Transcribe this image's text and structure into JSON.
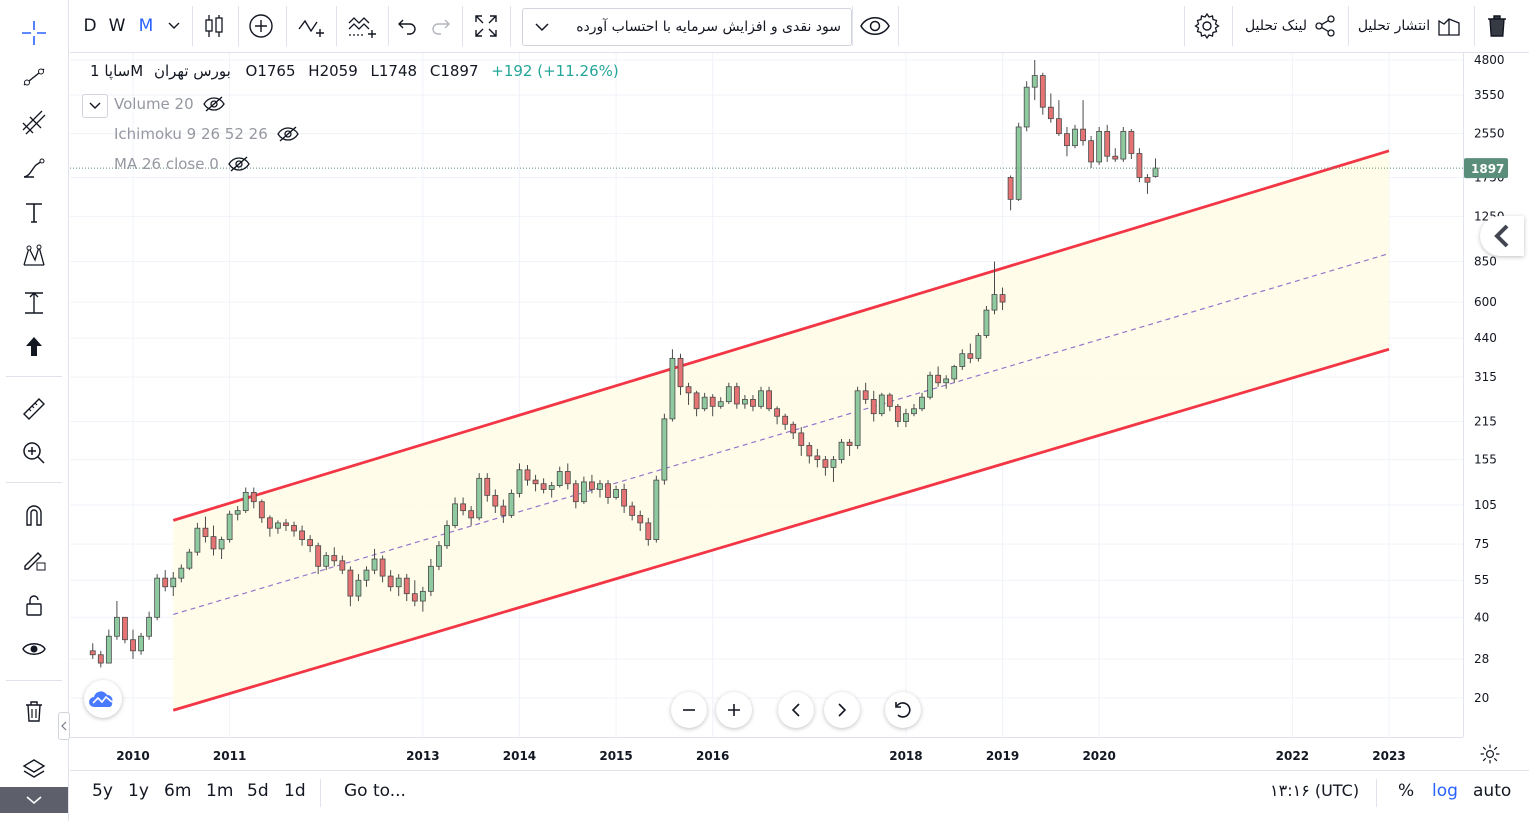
{
  "top_toolbar": {
    "intervals": [
      "D",
      "W",
      "M"
    ],
    "active_interval": "M",
    "chart_title": "سود نقدی و افزایش سرمایه با احتساب آورده",
    "publish_label": "انتشار تحلیل",
    "link_label": "لینک تحلیل"
  },
  "legend": {
    "symbol": "ساپا",
    "exchange": "بورس تهران",
    "interval": "1M",
    "open": "O1765",
    "high": "H2059",
    "low": "L1748",
    "close": "C1897",
    "change": "+192 (+11.26%)"
  },
  "indicators": [
    {
      "label": "Volume 20"
    },
    {
      "label": "Ichimoku 9 26 52 26"
    },
    {
      "label": "MA 26 close 0"
    }
  ],
  "bottom_bar": {
    "ranges": [
      "5y",
      "1y",
      "6m",
      "1m",
      "5d",
      "1d"
    ],
    "goto_label": "Go to...",
    "clock": "۱۳:۱۶ (UTC)",
    "percent_label": "%",
    "log_label": "log",
    "auto_label": "auto"
  },
  "colors": {
    "up": "#26a69a",
    "up_fill": "#8fc9a0",
    "down": "#ef5350",
    "down_fill": "#e57373",
    "channel": "#f23645",
    "channel_fill": "#fffde7",
    "median": "#9575cd",
    "accent": "#2962ff",
    "price_tag": "#5a8e7a"
  },
  "chart_data": {
    "type": "candlestick",
    "scale": "log",
    "y_ticks": [
      20,
      28,
      40,
      55,
      75,
      105,
      155,
      215,
      315,
      440,
      600,
      850,
      1250,
      1750,
      2550,
      3550,
      4800
    ],
    "x_ticks": [
      "2010",
      "2011",
      "2013",
      "2014",
      "2015",
      "2016",
      "2018",
      "2019",
      "2020",
      "2022",
      "2023"
    ],
    "last_price": "1897",
    "candles_start": "2009-08",
    "candles": [
      [
        30,
        32,
        28,
        29
      ],
      [
        29,
        30,
        26,
        27
      ],
      [
        27,
        36,
        27,
        34
      ],
      [
        34,
        46,
        33,
        40
      ],
      [
        40,
        40,
        32,
        33
      ],
      [
        33,
        36,
        28,
        30
      ],
      [
        30,
        35,
        29,
        34
      ],
      [
        34,
        42,
        33,
        40
      ],
      [
        40,
        58,
        39,
        56
      ],
      [
        56,
        60,
        50,
        52
      ],
      [
        52,
        59,
        48,
        56
      ],
      [
        56,
        63,
        54,
        61
      ],
      [
        61,
        72,
        60,
        70
      ],
      [
        70,
        90,
        68,
        86
      ],
      [
        86,
        95,
        76,
        80
      ],
      [
        80,
        88,
        68,
        72
      ],
      [
        72,
        80,
        66,
        78
      ],
      [
        78,
        100,
        76,
        97
      ],
      [
        97,
        104,
        92,
        100
      ],
      [
        100,
        122,
        98,
        117
      ],
      [
        117,
        122,
        102,
        108
      ],
      [
        108,
        110,
        90,
        94
      ],
      [
        94,
        96,
        80,
        86
      ],
      [
        86,
        92,
        82,
        90
      ],
      [
        90,
        93,
        84,
        88
      ],
      [
        88,
        91,
        80,
        84
      ],
      [
        84,
        88,
        74,
        78
      ],
      [
        78,
        81,
        70,
        74
      ],
      [
        74,
        76,
        58,
        62
      ],
      [
        62,
        70,
        60,
        68
      ],
      [
        68,
        73,
        62,
        65
      ],
      [
        65,
        68,
        58,
        60
      ],
      [
        60,
        62,
        44,
        48
      ],
      [
        48,
        58,
        46,
        55
      ],
      [
        55,
        62,
        52,
        60
      ],
      [
        60,
        72,
        58,
        66
      ],
      [
        66,
        68,
        54,
        57
      ],
      [
        57,
        60,
        50,
        52
      ],
      [
        52,
        58,
        48,
        56
      ],
      [
        56,
        58,
        46,
        49
      ],
      [
        49,
        55,
        44,
        46
      ],
      [
        46,
        52,
        42,
        50
      ],
      [
        50,
        66,
        48,
        62
      ],
      [
        62,
        77,
        60,
        74
      ],
      [
        74,
        92,
        72,
        88
      ],
      [
        88,
        112,
        86,
        106
      ],
      [
        106,
        112,
        96,
        100
      ],
      [
        100,
        104,
        88,
        94
      ],
      [
        94,
        138,
        92,
        132
      ],
      [
        132,
        138,
        108,
        114
      ],
      [
        114,
        120,
        98,
        104
      ],
      [
        104,
        110,
        90,
        96
      ],
      [
        96,
        120,
        94,
        116
      ],
      [
        116,
        150,
        112,
        142
      ],
      [
        142,
        148,
        124,
        130
      ],
      [
        130,
        136,
        118,
        126
      ],
      [
        126,
        132,
        116,
        120
      ],
      [
        120,
        128,
        112,
        124
      ],
      [
        124,
        146,
        122,
        140
      ],
      [
        140,
        150,
        120,
        126
      ],
      [
        126,
        130,
        102,
        108
      ],
      [
        108,
        134,
        106,
        128
      ],
      [
        128,
        136,
        116,
        120
      ],
      [
        120,
        130,
        112,
        126
      ],
      [
        126,
        130,
        106,
        112
      ],
      [
        112,
        124,
        110,
        120
      ],
      [
        120,
        126,
        98,
        104
      ],
      [
        104,
        108,
        92,
        96
      ],
      [
        96,
        100,
        84,
        90
      ],
      [
        90,
        94,
        74,
        78
      ],
      [
        78,
        135,
        76,
        130
      ],
      [
        130,
        230,
        125,
        220
      ],
      [
        220,
        400,
        215,
        370
      ],
      [
        370,
        385,
        270,
        290
      ],
      [
        290,
        300,
        248,
        275
      ],
      [
        275,
        280,
        225,
        240
      ],
      [
        240,
        275,
        235,
        265
      ],
      [
        265,
        272,
        225,
        245
      ],
      [
        245,
        265,
        240,
        255
      ],
      [
        255,
        300,
        250,
        290
      ],
      [
        290,
        300,
        240,
        250
      ],
      [
        250,
        270,
        240,
        260
      ],
      [
        260,
        270,
        235,
        245
      ],
      [
        245,
        290,
        240,
        280
      ],
      [
        280,
        290,
        235,
        240
      ],
      [
        240,
        245,
        210,
        225
      ],
      [
        225,
        230,
        200,
        210
      ],
      [
        210,
        215,
        185,
        195
      ],
      [
        195,
        205,
        160,
        175
      ],
      [
        175,
        180,
        150,
        160
      ],
      [
        160,
        170,
        145,
        155
      ],
      [
        155,
        160,
        135,
        145
      ],
      [
        145,
        160,
        128,
        155
      ],
      [
        155,
        185,
        150,
        180
      ],
      [
        180,
        185,
        160,
        175
      ],
      [
        175,
        290,
        170,
        280
      ],
      [
        280,
        300,
        250,
        260
      ],
      [
        260,
        280,
        215,
        230
      ],
      [
        230,
        275,
        225,
        270
      ],
      [
        270,
        275,
        235,
        245
      ],
      [
        245,
        250,
        205,
        215
      ],
      [
        215,
        240,
        205,
        230
      ],
      [
        230,
        250,
        225,
        240
      ],
      [
        240,
        275,
        235,
        265
      ],
      [
        265,
        330,
        260,
        320
      ],
      [
        320,
        345,
        290,
        300
      ],
      [
        300,
        320,
        285,
        310
      ],
      [
        310,
        350,
        300,
        345
      ],
      [
        345,
        400,
        335,
        385
      ],
      [
        385,
        420,
        355,
        370
      ],
      [
        370,
        460,
        360,
        450
      ],
      [
        450,
        580,
        440,
        560
      ],
      [
        560,
        850,
        540,
        640
      ],
      [
        640,
        680,
        560,
        600
      ],
      [
        1750,
        1780,
        1320,
        1450
      ],
      [
        1450,
        2800,
        1430,
        2700
      ],
      [
        2700,
        4000,
        2600,
        3800
      ],
      [
        3800,
        4800,
        3400,
        4200
      ],
      [
        4200,
        4300,
        3000,
        3200
      ],
      [
        3200,
        3600,
        2800,
        2900
      ],
      [
        2900,
        3400,
        2500,
        2550
      ],
      [
        2550,
        2700,
        2100,
        2300
      ],
      [
        2300,
        2750,
        2250,
        2650
      ],
      [
        2650,
        3400,
        2300,
        2400
      ],
      [
        2400,
        2500,
        1900,
        2000
      ],
      [
        2000,
        2700,
        1950,
        2600
      ],
      [
        2600,
        2750,
        2000,
        2100
      ],
      [
        2100,
        2250,
        2000,
        2050
      ],
      [
        2050,
        2700,
        2000,
        2600
      ],
      [
        2600,
        2650,
        2050,
        2150
      ],
      [
        2150,
        2250,
        1680,
        1750
      ],
      [
        1750,
        1800,
        1520,
        1680
      ],
      [
        1765,
        2059,
        1748,
        1897
      ]
    ],
    "channel": {
      "upper": [
        [
          "2010-06",
          92
        ],
        [
          "2023-01",
          2200
        ]
      ],
      "median": [
        [
          "2010-06",
          41
        ],
        [
          "2023-01",
          910
        ]
      ],
      "lower": [
        [
          "2010-06",
          18
        ],
        [
          "2023-01",
          400
        ]
      ]
    }
  }
}
